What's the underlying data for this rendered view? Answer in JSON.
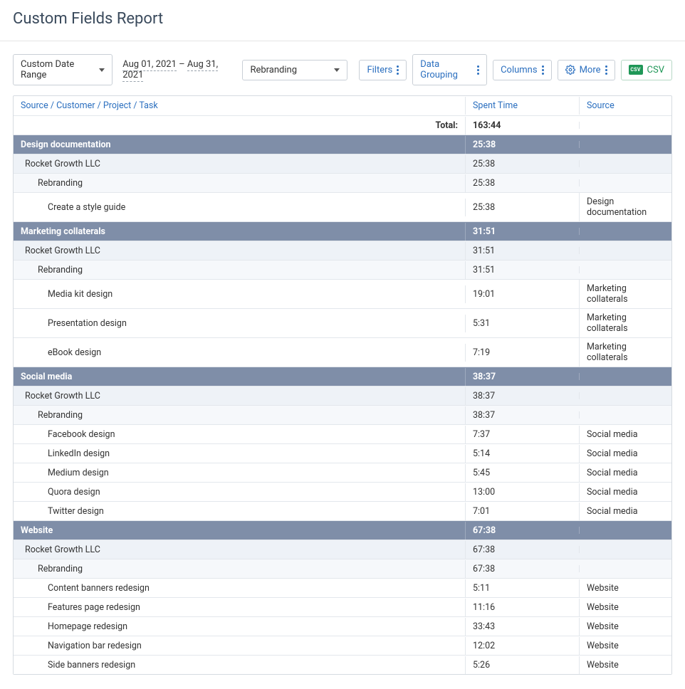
{
  "title": "Custom Fields Report",
  "toolbar": {
    "date_mode": "Custom Date Range",
    "date_from": "Aug 01, 2021",
    "date_to": "Aug 31, 2021",
    "filter_value": "Rebranding",
    "filters_btn": "Filters",
    "grouping_btn": "Data Grouping",
    "columns_btn": "Columns",
    "more_btn": "More",
    "csv_btn": "CSV"
  },
  "table": {
    "columns": {
      "name": "Source / Customer / Project / Task",
      "time": "Spent Time",
      "source": "Source"
    },
    "total_label": "Total:",
    "total_time": "163:44",
    "groups": [
      {
        "name": "Design documentation",
        "time": "25:38",
        "customers": [
          {
            "name": "Rocket Growth LLC",
            "time": "25:38",
            "projects": [
              {
                "name": "Rebranding",
                "time": "25:38",
                "tasks": [
                  {
                    "name": "Create a style guide",
                    "time": "25:38",
                    "source": "Design documentation"
                  }
                ]
              }
            ]
          }
        ]
      },
      {
        "name": "Marketing collaterals",
        "time": "31:51",
        "customers": [
          {
            "name": "Rocket Growth LLC",
            "time": "31:51",
            "projects": [
              {
                "name": "Rebranding",
                "time": "31:51",
                "tasks": [
                  {
                    "name": "Media kit design",
                    "time": "19:01",
                    "source": "Marketing collaterals"
                  },
                  {
                    "name": "Presentation design",
                    "time": "5:31",
                    "source": "Marketing collaterals"
                  },
                  {
                    "name": "eBook design",
                    "time": "7:19",
                    "source": "Marketing collaterals"
                  }
                ]
              }
            ]
          }
        ]
      },
      {
        "name": "Social media",
        "time": "38:37",
        "customers": [
          {
            "name": "Rocket Growth LLC",
            "time": "38:37",
            "projects": [
              {
                "name": "Rebranding",
                "time": "38:37",
                "tasks": [
                  {
                    "name": "Facebook design",
                    "time": "7:37",
                    "source": "Social media"
                  },
                  {
                    "name": "LinkedIn design",
                    "time": "5:14",
                    "source": "Social media"
                  },
                  {
                    "name": "Medium design",
                    "time": "5:45",
                    "source": "Social media"
                  },
                  {
                    "name": "Quora design",
                    "time": "13:00",
                    "source": "Social media"
                  },
                  {
                    "name": "Twitter design",
                    "time": "7:01",
                    "source": "Social media"
                  }
                ]
              }
            ]
          }
        ]
      },
      {
        "name": "Website",
        "time": "67:38",
        "customers": [
          {
            "name": "Rocket Growth LLC",
            "time": "67:38",
            "projects": [
              {
                "name": "Rebranding",
                "time": "67:38",
                "tasks": [
                  {
                    "name": "Content banners redesign",
                    "time": "5:11",
                    "source": "Website"
                  },
                  {
                    "name": "Features page redesign",
                    "time": "11:16",
                    "source": "Website"
                  },
                  {
                    "name": "Homepage redesign",
                    "time": "33:43",
                    "source": "Website"
                  },
                  {
                    "name": "Navigation bar redesign",
                    "time": "12:02",
                    "source": "Website"
                  },
                  {
                    "name": "Side banners redesign",
                    "time": "5:26",
                    "source": "Website"
                  }
                ]
              }
            ]
          }
        ]
      }
    ]
  },
  "colors": {
    "group_header": "#7f8ea8",
    "link": "#2b6fbf",
    "border": "#d6dbe1"
  }
}
